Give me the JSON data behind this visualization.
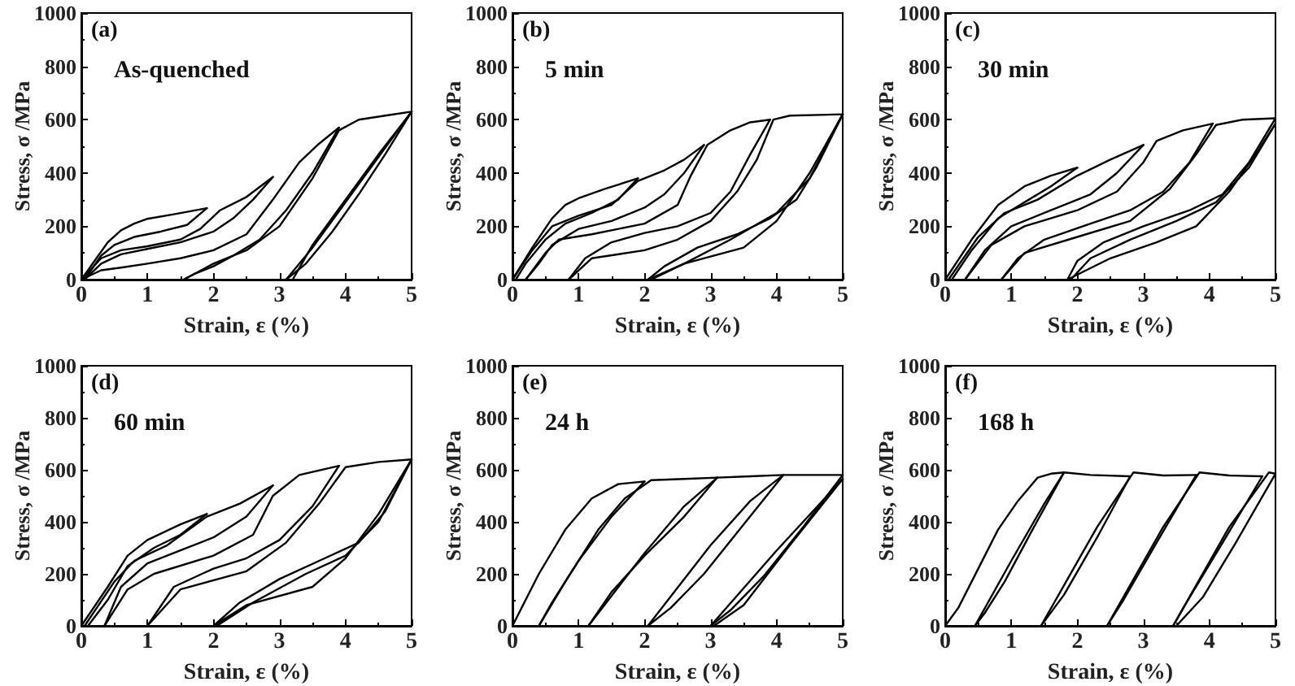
{
  "chart_data": [
    {
      "type": "line",
      "annotations": [
        "(a)",
        "As-quenched"
      ],
      "xlabel": "Strain, ε (%)",
      "ylabel": "Stress, σ /MPa",
      "xlim": [
        0,
        5
      ],
      "ylim": [
        0,
        1000
      ],
      "xticks": [
        0,
        1,
        2,
        3,
        4,
        5
      ],
      "yticks": [
        0,
        200,
        400,
        600,
        800,
        1000
      ],
      "marker": "none",
      "line_style": "solid",
      "grid": false,
      "series": [
        {
          "color": "#000000",
          "x": [
            0,
            0.2,
            0.4,
            0.6,
            0.8,
            1,
            1.4,
            1.9
          ],
          "values": [
            0,
            70,
            140,
            185,
            210,
            228,
            245,
            268
          ]
        },
        {
          "color": "#000000",
          "x": [
            1.9,
            1.6,
            1.2,
            0.8,
            0.5,
            0.3,
            0.05
          ],
          "values": [
            268,
            205,
            180,
            160,
            130,
            90,
            0
          ]
        },
        {
          "color": "#000000",
          "x": [
            0,
            0.3,
            0.6,
            1,
            1.5,
            1.8,
            2.1,
            2.5,
            2.9
          ],
          "values": [
            0,
            80,
            110,
            125,
            150,
            190,
            260,
            310,
            385
          ]
        },
        {
          "color": "#000000",
          "x": [
            2.9,
            2.6,
            2.3,
            2,
            1.5,
            1,
            0.6,
            0.3,
            0.05
          ],
          "values": [
            385,
            300,
            230,
            180,
            140,
            115,
            95,
            60,
            0
          ]
        },
        {
          "color": "#000000",
          "x": [
            0,
            0.3,
            0.6,
            1,
            1.5,
            2,
            2.5,
            2.9,
            3.3,
            3.6,
            3.9
          ],
          "values": [
            0,
            35,
            45,
            60,
            80,
            110,
            170,
            300,
            440,
            510,
            570
          ]
        },
        {
          "color": "#000000",
          "x": [
            3.9,
            3.5,
            3.1,
            2.7,
            2.3,
            2,
            1.7,
            1.55
          ],
          "values": [
            570,
            400,
            260,
            150,
            90,
            50,
            20,
            0
          ]
        },
        {
          "color": "#000000",
          "x": [
            1.55,
            2,
            2.5,
            3,
            3.5,
            3.9,
            4.2,
            4.6,
            5
          ],
          "values": [
            0,
            60,
            110,
            200,
            380,
            560,
            600,
            615,
            630
          ]
        },
        {
          "color": "#000000",
          "x": [
            5,
            4.6,
            4.2,
            3.8,
            3.4,
            3.1
          ],
          "values": [
            630,
            470,
            320,
            180,
            60,
            0
          ]
        },
        {
          "color": "#000000",
          "x": [
            3.1,
            3.5,
            4,
            4.5,
            5
          ],
          "values": [
            0,
            120,
            290,
            460,
            630
          ]
        },
        {
          "color": "#000000",
          "x": [
            5,
            4.5,
            4,
            3.5,
            3.2
          ],
          "values": [
            630,
            470,
            300,
            130,
            0
          ]
        }
      ]
    },
    {
      "type": "line",
      "annotations": [
        "(b)",
        "5 min"
      ],
      "xlabel": "Strain, ε (%)",
      "ylabel": "Stress, σ /MPa",
      "xlim": [
        0,
        5
      ],
      "ylim": [
        0,
        1000
      ],
      "xticks": [
        0,
        1,
        2,
        3,
        4,
        5
      ],
      "yticks": [
        0,
        200,
        400,
        600,
        800,
        1000
      ],
      "marker": "none",
      "line_style": "solid",
      "grid": false,
      "series": [
        {
          "color": "#000000",
          "x": [
            0,
            0.3,
            0.6,
            0.8,
            1,
            1.4,
            1.9
          ],
          "values": [
            0,
            120,
            230,
            280,
            305,
            340,
            380
          ]
        },
        {
          "color": "#000000",
          "x": [
            1.9,
            1.6,
            1.2,
            0.8,
            0.5,
            0.2,
            0.05
          ],
          "values": [
            380,
            300,
            250,
            210,
            150,
            60,
            0
          ]
        },
        {
          "color": "#000000",
          "x": [
            0,
            0.3,
            0.6,
            1,
            1.5,
            1.9,
            2.3,
            2.6,
            2.9
          ],
          "values": [
            0,
            110,
            200,
            240,
            280,
            370,
            410,
            450,
            505
          ]
        },
        {
          "color": "#000000",
          "x": [
            2.9,
            2.6,
            2.3,
            2,
            1.5,
            1,
            0.6,
            0.4,
            0.2
          ],
          "values": [
            505,
            400,
            320,
            270,
            220,
            190,
            130,
            60,
            0
          ]
        },
        {
          "color": "#000000",
          "x": [
            0.2,
            0.5,
            0.7,
            1.2,
            2,
            2.5,
            2.7,
            2.95,
            3.3,
            3.6,
            3.9
          ],
          "values": [
            0,
            100,
            150,
            170,
            210,
            280,
            390,
            505,
            560,
            590,
            600
          ]
        },
        {
          "color": "#000000",
          "x": [
            3.9,
            3.6,
            3.3,
            3,
            2.5,
            2,
            1.5,
            1.1,
            0.85
          ],
          "values": [
            600,
            470,
            330,
            250,
            200,
            175,
            140,
            80,
            0
          ]
        },
        {
          "color": "#000000",
          "x": [
            0.85,
            1.2,
            2,
            2.5,
            3,
            3.4,
            3.7,
            3.95,
            4.2,
            5
          ],
          "values": [
            0,
            80,
            110,
            150,
            220,
            330,
            450,
            600,
            615,
            620
          ]
        },
        {
          "color": "#000000",
          "x": [
            5,
            4.6,
            4.3,
            3.9,
            3.4,
            2.8,
            2.3,
            2.05
          ],
          "values": [
            620,
            420,
            300,
            230,
            170,
            120,
            50,
            0
          ]
        },
        {
          "color": "#000000",
          "x": [
            2.05,
            2.6,
            3.5,
            4,
            4.5,
            5
          ],
          "values": [
            0,
            60,
            120,
            220,
            400,
            620
          ]
        },
        {
          "color": "#000000",
          "x": [
            5,
            4.5,
            4,
            3.3,
            2.6,
            2.1
          ],
          "values": [
            620,
            380,
            250,
            150,
            60,
            0
          ]
        }
      ]
    },
    {
      "type": "line",
      "annotations": [
        "(c)",
        "30 min"
      ],
      "xlabel": "Strain, ε (%)",
      "ylabel": "Stress, σ /MPa",
      "xlim": [
        0,
        5
      ],
      "ylim": [
        0,
        1000
      ],
      "xticks": [
        0,
        1,
        2,
        3,
        4,
        5
      ],
      "yticks": [
        0,
        200,
        400,
        600,
        800,
        1000
      ],
      "marker": "none",
      "line_style": "solid",
      "grid": false,
      "series": [
        {
          "color": "#000000",
          "x": [
            0,
            0.4,
            0.8,
            1.2,
            1.6,
            2
          ],
          "values": [
            0,
            150,
            280,
            350,
            390,
            420
          ]
        },
        {
          "color": "#000000",
          "x": [
            2,
            1.6,
            1.2,
            0.8,
            0.4,
            0.1
          ],
          "values": [
            420,
            350,
            290,
            230,
            110,
            0
          ]
        },
        {
          "color": "#000000",
          "x": [
            0.05,
            0.5,
            0.9,
            1.4,
            2,
            2.5,
            3
          ],
          "values": [
            0,
            160,
            250,
            300,
            390,
            450,
            505
          ]
        },
        {
          "color": "#000000",
          "x": [
            3,
            2.6,
            2.2,
            1.6,
            1,
            0.6,
            0.3
          ],
          "values": [
            505,
            400,
            320,
            260,
            200,
            110,
            0
          ]
        },
        {
          "color": "#000000",
          "x": [
            0.3,
            0.7,
            1.2,
            2,
            2.6,
            3,
            3.2,
            3.6,
            4.05
          ],
          "values": [
            0,
            130,
            200,
            260,
            330,
            440,
            520,
            560,
            585
          ]
        },
        {
          "color": "#000000",
          "x": [
            4.05,
            3.7,
            3.3,
            2.8,
            2.2,
            1.5,
            1.1,
            0.85
          ],
          "values": [
            585,
            440,
            330,
            260,
            210,
            150,
            80,
            0
          ]
        },
        {
          "color": "#000000",
          "x": [
            0.85,
            1.2,
            2,
            2.8,
            3.4,
            3.8,
            4.1,
            4.5,
            5
          ],
          "values": [
            0,
            100,
            160,
            220,
            340,
            470,
            580,
            600,
            605
          ]
        },
        {
          "color": "#000000",
          "x": [
            5,
            4.6,
            4.2,
            3.7,
            3,
            2.4,
            2,
            1.85
          ],
          "values": [
            605,
            440,
            320,
            260,
            200,
            140,
            70,
            0
          ]
        },
        {
          "color": "#000000",
          "x": [
            1.85,
            2.5,
            3.2,
            3.8,
            4.3,
            4.7,
            5
          ],
          "values": [
            0,
            80,
            140,
            200,
            330,
            470,
            585
          ]
        },
        {
          "color": "#000000",
          "x": [
            5,
            4.6,
            4.1,
            3.5,
            2.8,
            2.2,
            1.9
          ],
          "values": [
            585,
            420,
            290,
            220,
            150,
            80,
            0
          ]
        }
      ]
    },
    {
      "type": "line",
      "annotations": [
        "(d)",
        "60 min"
      ],
      "xlabel": "Strain, ε (%)",
      "ylabel": "Stress, σ /MPa",
      "xlim": [
        0,
        5
      ],
      "ylim": [
        0,
        1000
      ],
      "xticks": [
        0,
        1,
        2,
        3,
        4,
        5
      ],
      "yticks": [
        0,
        200,
        400,
        600,
        800,
        1000
      ],
      "marker": "none",
      "line_style": "solid",
      "grid": false,
      "series": [
        {
          "color": "#000000",
          "x": [
            0,
            0.4,
            0.7,
            1,
            1.5,
            1.9
          ],
          "values": [
            0,
            150,
            270,
            330,
            390,
            430
          ]
        },
        {
          "color": "#000000",
          "x": [
            1.9,
            1.5,
            1.1,
            0.7,
            0.4,
            0.1
          ],
          "values": [
            430,
            350,
            300,
            230,
            100,
            0
          ]
        },
        {
          "color": "#000000",
          "x": [
            0.05,
            0.5,
            0.8,
            1.3,
            1.9,
            2.4,
            2.9
          ],
          "values": [
            0,
            170,
            250,
            310,
            420,
            470,
            540
          ]
        },
        {
          "color": "#000000",
          "x": [
            2.9,
            2.5,
            2,
            1.5,
            1,
            0.6,
            0.35
          ],
          "values": [
            540,
            420,
            340,
            290,
            240,
            150,
            0
          ]
        },
        {
          "color": "#000000",
          "x": [
            0.35,
            0.7,
            1.1,
            2,
            2.6,
            2.9,
            3.3,
            3.9
          ],
          "values": [
            0,
            140,
            200,
            270,
            350,
            500,
            580,
            615
          ]
        },
        {
          "color": "#000000",
          "x": [
            3.9,
            3.5,
            3,
            2.5,
            2,
            1.4,
            1
          ],
          "values": [
            615,
            460,
            330,
            260,
            220,
            150,
            0
          ]
        },
        {
          "color": "#000000",
          "x": [
            1,
            1.5,
            2.5,
            3.1,
            3.6,
            4,
            4.5,
            5
          ],
          "values": [
            0,
            140,
            210,
            320,
            470,
            610,
            630,
            640
          ]
        },
        {
          "color": "#000000",
          "x": [
            5,
            4.6,
            4.2,
            3.6,
            3,
            2.4,
            2
          ],
          "values": [
            640,
            440,
            320,
            250,
            180,
            90,
            0
          ]
        },
        {
          "color": "#000000",
          "x": [
            2,
            2.5,
            3.5,
            4,
            4.5,
            5
          ],
          "values": [
            0,
            80,
            150,
            260,
            430,
            640
          ]
        },
        {
          "color": "#000000",
          "x": [
            5,
            4.5,
            4,
            3.4,
            2.6,
            2.05
          ],
          "values": [
            640,
            400,
            270,
            200,
            90,
            0
          ]
        }
      ]
    },
    {
      "type": "line",
      "annotations": [
        "(e)",
        "24 h"
      ],
      "xlabel": "Strain, ε (%)",
      "ylabel": "Stress, σ /MPa",
      "xlim": [
        0,
        5
      ],
      "ylim": [
        0,
        1000
      ],
      "xticks": [
        0,
        1,
        2,
        3,
        4,
        5
      ],
      "yticks": [
        0,
        200,
        400,
        600,
        800,
        1000
      ],
      "marker": "none",
      "line_style": "solid",
      "grid": false,
      "series": [
        {
          "color": "#000000",
          "x": [
            0,
            0.4,
            0.8,
            1.2,
            1.6,
            2
          ],
          "values": [
            0,
            200,
            370,
            490,
            545,
            555
          ]
        },
        {
          "color": "#000000",
          "x": [
            2,
            1.5,
            1,
            0.6,
            0.4
          ],
          "values": [
            555,
            420,
            250,
            90,
            0
          ]
        },
        {
          "color": "#000000",
          "x": [
            0.4,
            0.8,
            1.3,
            1.7,
            2.1,
            2.6,
            3.1
          ],
          "values": [
            0,
            170,
            370,
            490,
            560,
            565,
            570
          ]
        },
        {
          "color": "#000000",
          "x": [
            3.1,
            2.6,
            2,
            1.5,
            1.15
          ],
          "values": [
            570,
            420,
            270,
            130,
            0
          ]
        },
        {
          "color": "#000000",
          "x": [
            1.15,
            2,
            2.6,
            3.1,
            3.6,
            4.1
          ],
          "values": [
            0,
            280,
            460,
            570,
            575,
            580
          ]
        },
        {
          "color": "#000000",
          "x": [
            4.1,
            3.5,
            2.9,
            2.4,
            2.05
          ],
          "values": [
            580,
            390,
            200,
            70,
            0
          ]
        },
        {
          "color": "#000000",
          "x": [
            2.05,
            3,
            3.6,
            4.1,
            4.5,
            5
          ],
          "values": [
            0,
            310,
            480,
            580,
            580,
            580
          ]
        },
        {
          "color": "#000000",
          "x": [
            5,
            4.4,
            3.8,
            3.3,
            3
          ],
          "values": [
            580,
            380,
            190,
            60,
            0
          ]
        },
        {
          "color": "#000000",
          "x": [
            3,
            4,
            5
          ],
          "values": [
            0,
            290,
            565
          ]
        },
        {
          "color": "#000000",
          "x": [
            5,
            4.2,
            3.5,
            3.05
          ],
          "values": [
            565,
            310,
            80,
            0
          ]
        }
      ]
    },
    {
      "type": "line",
      "annotations": [
        "(f)",
        "168 h"
      ],
      "xlabel": "Strain, ε (%)",
      "ylabel": "Stress, σ /MPa",
      "xlim": [
        0,
        5
      ],
      "ylim": [
        0,
        1000
      ],
      "xticks": [
        0,
        1,
        2,
        3,
        4,
        5
      ],
      "yticks": [
        0,
        200,
        400,
        600,
        800,
        1000
      ],
      "marker": "none",
      "line_style": "solid",
      "grid": false,
      "series": [
        {
          "color": "#000000",
          "x": [
            0,
            0.2,
            0.5,
            0.8,
            1.1,
            1.4,
            1.6,
            1.8
          ],
          "values": [
            0,
            70,
            220,
            370,
            480,
            570,
            585,
            590
          ]
        },
        {
          "color": "#000000",
          "x": [
            1.8,
            1.3,
            0.9,
            0.6,
            0.45
          ],
          "values": [
            590,
            360,
            170,
            50,
            0
          ]
        },
        {
          "color": "#000000",
          "x": [
            0.45,
            1,
            1.5,
            1.8,
            2.2,
            2.8
          ],
          "values": [
            0,
            250,
            470,
            590,
            580,
            575
          ]
        },
        {
          "color": "#000000",
          "x": [
            2.8,
            2.3,
            1.8,
            1.45
          ],
          "values": [
            575,
            340,
            120,
            0
          ]
        },
        {
          "color": "#000000",
          "x": [
            1.45,
            2.3,
            2.85,
            3.3,
            3.8
          ],
          "values": [
            0,
            380,
            590,
            578,
            580
          ]
        },
        {
          "color": "#000000",
          "x": [
            3.8,
            3.2,
            2.7,
            2.45
          ],
          "values": [
            580,
            320,
            100,
            0
          ]
        },
        {
          "color": "#000000",
          "x": [
            2.45,
            3.3,
            3.85,
            4.3,
            4.8
          ],
          "values": [
            0,
            380,
            590,
            578,
            575
          ]
        },
        {
          "color": "#000000",
          "x": [
            4.8,
            4.2,
            3.7,
            3.45
          ],
          "values": [
            575,
            320,
            110,
            0
          ]
        },
        {
          "color": "#000000",
          "x": [
            3.45,
            4.3,
            4.9,
            5
          ],
          "values": [
            0,
            380,
            590,
            585
          ]
        },
        {
          "color": "#000000",
          "x": [
            5,
            4.4,
            3.9,
            3.5
          ],
          "values": [
            585,
            320,
            110,
            0
          ]
        }
      ]
    }
  ]
}
